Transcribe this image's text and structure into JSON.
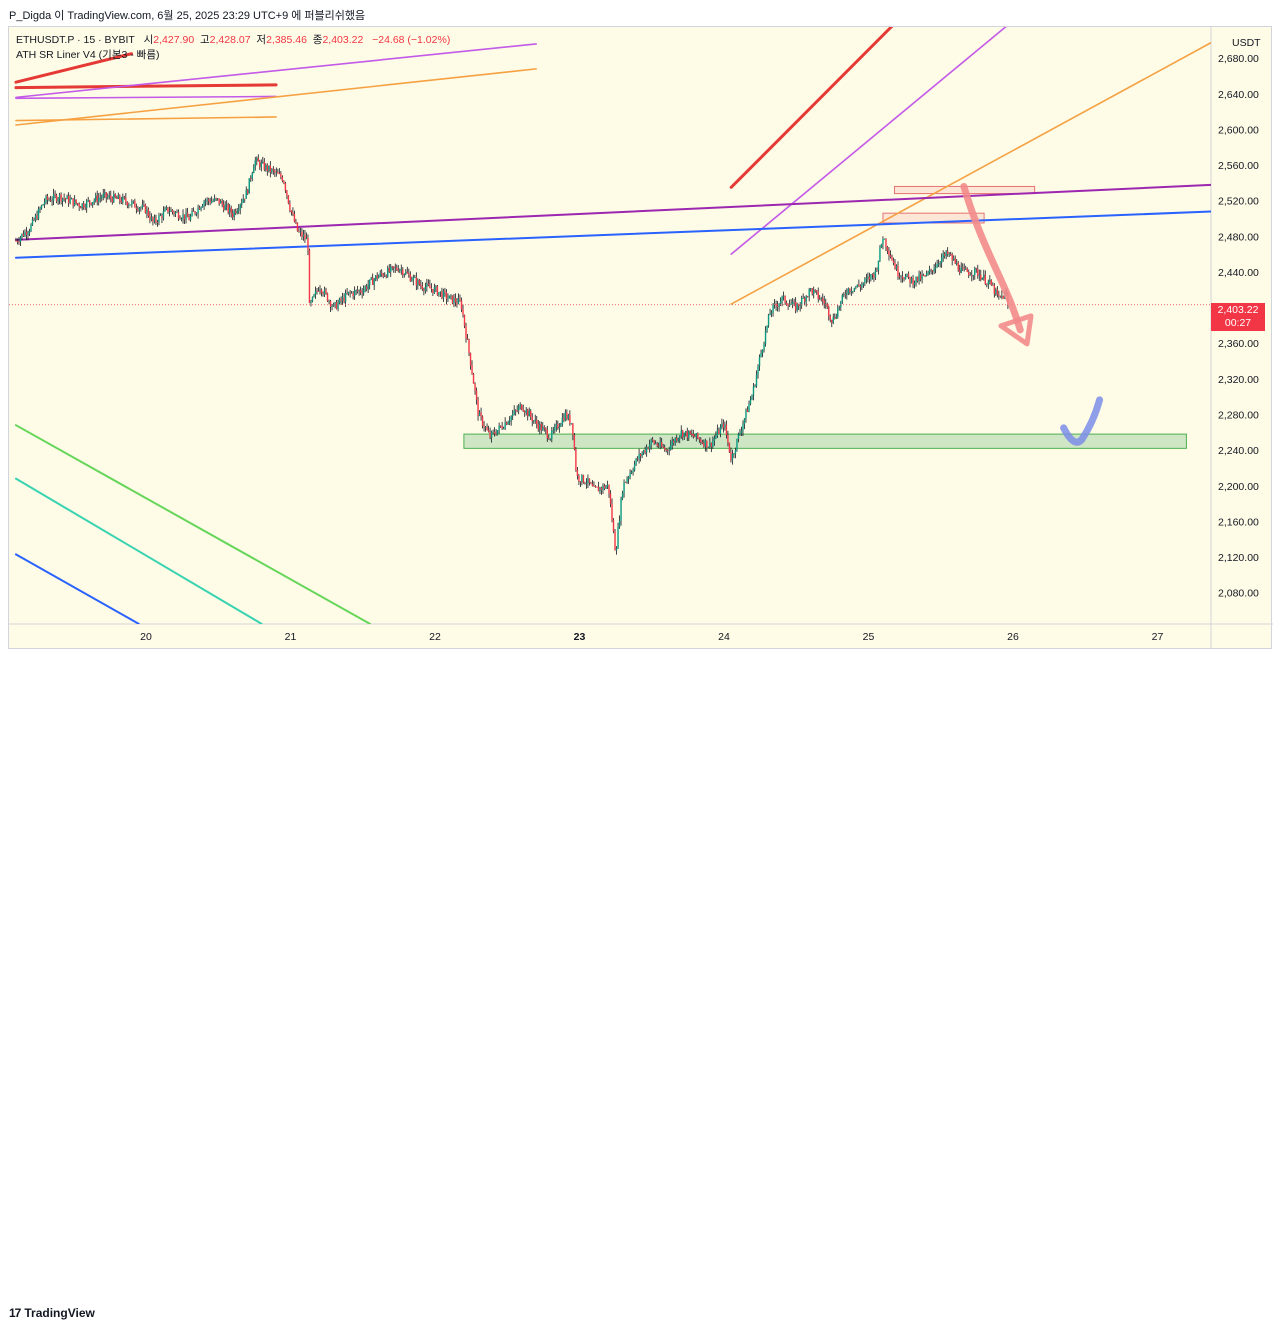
{
  "header": {
    "publisher_line": "P_Digda 이 TradingView.com, 6월 25, 2025 23:29 UTC+9 에 퍼블리쉬했음"
  },
  "legend": {
    "symbol": "ETHUSDT.P · 15 · BYBIT",
    "open_label": "시",
    "open": "2,427.90",
    "high_label": "고",
    "high": "2,428.07",
    "low_label": "저",
    "low": "2,385.46",
    "close_label": "종",
    "close": "2,403.22",
    "change": "−24.68 (−1.02%)",
    "indicator": "ATH SR Liner V4 (기본3 - 빠름)"
  },
  "price_axis": {
    "currency": "USDT",
    "last_price": "2,403.22",
    "countdown": "00:27"
  },
  "footer": {
    "brand": "TradingView"
  },
  "colors": {
    "up": "#089981",
    "down": "#f23645",
    "background": "#fefbe6",
    "red_line": "#e53935",
    "violet_line": "#c35ae8",
    "orange_line": "#f5a142",
    "purple_line": "#9c27b0",
    "blue_line": "#2962ff",
    "green_zone": "#a5d6a7",
    "pink_arrow": "#f28b8b",
    "check_mark": "#7b8de8"
  },
  "chart_data": {
    "type": "candlestick",
    "symbol": "ETHUSDT.P",
    "interval": "15",
    "exchange": "BYBIT",
    "ylim": [
      2045,
      2715
    ],
    "y_ticks": [
      2680,
      2640,
      2600,
      2560,
      2520,
      2480,
      2440,
      2400,
      2360,
      2320,
      2280,
      2240,
      2200,
      2160,
      2120,
      2080
    ],
    "x_ticks": [
      "20",
      "21",
      "22",
      "23",
      "24",
      "25",
      "26",
      "27"
    ],
    "x_range_days": [
      19.1,
      27.4
    ],
    "price_path": [
      [
        19.1,
        2475
      ],
      [
        19.2,
        2490
      ],
      [
        19.3,
        2520
      ],
      [
        19.4,
        2525
      ],
      [
        19.55,
        2515
      ],
      [
        19.7,
        2525
      ],
      [
        19.85,
        2520
      ],
      [
        20.0,
        2510
      ],
      [
        20.05,
        2495
      ],
      [
        20.15,
        2510
      ],
      [
        20.3,
        2500
      ],
      [
        20.4,
        2520
      ],
      [
        20.5,
        2520
      ],
      [
        20.6,
        2505
      ],
      [
        20.7,
        2530
      ],
      [
        20.75,
        2565
      ],
      [
        20.85,
        2555
      ],
      [
        20.95,
        2545
      ],
      [
        21.0,
        2510
      ],
      [
        21.05,
        2485
      ],
      [
        21.12,
        2475
      ],
      [
        21.13,
        2400
      ],
      [
        21.2,
        2425
      ],
      [
        21.3,
        2400
      ],
      [
        21.4,
        2415
      ],
      [
        21.5,
        2420
      ],
      [
        21.6,
        2435
      ],
      [
        21.75,
        2445
      ],
      [
        21.9,
        2425
      ],
      [
        22.0,
        2420
      ],
      [
        22.1,
        2410
      ],
      [
        22.18,
        2405
      ],
      [
        22.25,
        2335
      ],
      [
        22.3,
        2280
      ],
      [
        22.38,
        2255
      ],
      [
        22.45,
        2265
      ],
      [
        22.6,
        2290
      ],
      [
        22.7,
        2270
      ],
      [
        22.8,
        2255
      ],
      [
        22.9,
        2280
      ],
      [
        22.95,
        2270
      ],
      [
        22.98,
        2210
      ],
      [
        23.05,
        2205
      ],
      [
        23.1,
        2195
      ],
      [
        23.2,
        2200
      ],
      [
        23.25,
        2125
      ],
      [
        23.3,
        2200
      ],
      [
        23.4,
        2230
      ],
      [
        23.5,
        2250
      ],
      [
        23.6,
        2240
      ],
      [
        23.7,
        2260
      ],
      [
        23.8,
        2255
      ],
      [
        23.9,
        2245
      ],
      [
        24.0,
        2270
      ],
      [
        24.05,
        2230
      ],
      [
        24.1,
        2255
      ],
      [
        24.2,
        2305
      ],
      [
        24.25,
        2345
      ],
      [
        24.32,
        2395
      ],
      [
        24.4,
        2410
      ],
      [
        24.5,
        2400
      ],
      [
        24.6,
        2420
      ],
      [
        24.7,
        2405
      ],
      [
        24.75,
        2385
      ],
      [
        24.85,
        2420
      ],
      [
        24.95,
        2425
      ],
      [
        25.05,
        2440
      ],
      [
        25.1,
        2480
      ],
      [
        25.2,
        2440
      ],
      [
        25.3,
        2430
      ],
      [
        25.4,
        2435
      ],
      [
        25.5,
        2455
      ],
      [
        25.55,
        2460
      ],
      [
        25.65,
        2440
      ],
      [
        25.75,
        2440
      ],
      [
        25.85,
        2425
      ],
      [
        25.9,
        2410
      ],
      [
        25.95,
        2415
      ],
      [
        25.97,
        2403
      ]
    ],
    "last_close": 2403.22,
    "drawings": {
      "lines": [
        {
          "color": "red",
          "from": [
            19.1,
            2653
          ],
          "to": [
            19.9,
            2685
          ]
        },
        {
          "color": "red",
          "from": [
            19.1,
            2647
          ],
          "to": [
            20.9,
            2650
          ]
        },
        {
          "color": "red",
          "from": [
            24.05,
            2535
          ],
          "to": [
            25.2,
            2722
          ]
        },
        {
          "color": "violet",
          "from": [
            19.1,
            2635
          ],
          "to": [
            20.9,
            2637
          ]
        },
        {
          "color": "violet",
          "from": [
            19.1,
            2636
          ],
          "to": [
            22.7,
            2696
          ]
        },
        {
          "color": "violet",
          "from": [
            24.05,
            2460
          ],
          "to": [
            26.0,
            2722
          ]
        },
        {
          "color": "orange",
          "from": [
            19.1,
            2605
          ],
          "to": [
            22.7,
            2668
          ]
        },
        {
          "color": "orange",
          "from": [
            19.1,
            2610
          ],
          "to": [
            20.9,
            2614
          ]
        },
        {
          "color": "orange",
          "from": [
            24.05,
            2404
          ],
          "to": [
            27.4,
            2700
          ]
        },
        {
          "color": "purple",
          "from": [
            19.1,
            2476
          ],
          "to": [
            27.4,
            2538
          ]
        },
        {
          "color": "blue",
          "from": [
            19.1,
            2456
          ],
          "to": [
            27.4,
            2508
          ]
        },
        {
          "color": "green",
          "from": [
            19.1,
            2268
          ],
          "to": [
            21.55,
            2045
          ]
        },
        {
          "color": "teal",
          "from": [
            19.1,
            2208
          ],
          "to": [
            20.8,
            2045
          ]
        },
        {
          "color": "blue",
          "from": [
            19.1,
            2123
          ],
          "to": [
            19.95,
            2045
          ]
        }
      ],
      "zones": [
        {
          "color": "green",
          "day_from": 22.2,
          "day_to": 27.2,
          "price_low": 2242,
          "price_high": 2258
        },
        {
          "color": "red",
          "day_from": 25.18,
          "day_to": 26.15,
          "price_low": 2528,
          "price_high": 2536
        },
        {
          "color": "red",
          "day_from": 25.1,
          "day_to": 25.8,
          "price_low": 2495,
          "price_high": 2506
        }
      ]
    }
  }
}
